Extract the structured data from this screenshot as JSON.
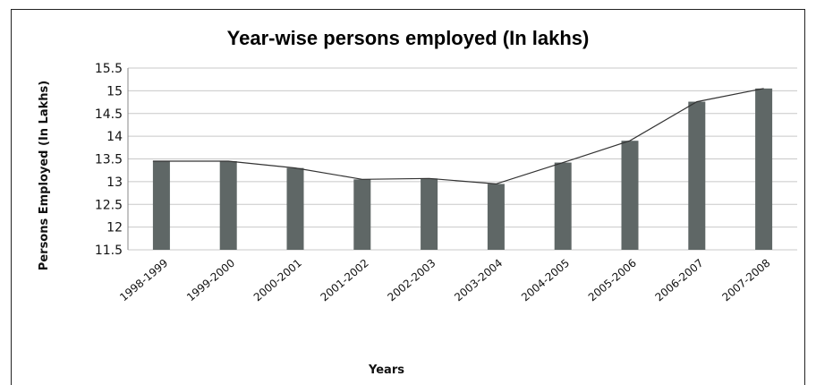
{
  "colors": {
    "bar": "#5f6766",
    "line": "#333333",
    "grid": "#c8c8c8",
    "axis": "#888888"
  },
  "chart_data": {
    "type": "bar",
    "title": "Year-wise persons employed (In lakhs)",
    "xlabel": "Years",
    "ylabel": "Persons Employed (In Lakhs)",
    "ylim": [
      11.5,
      15.5
    ],
    "y_ticks": [
      "11.5",
      "12",
      "12.5",
      "13",
      "13.5",
      "14",
      "14.5",
      "15",
      "15.5"
    ],
    "grid": true,
    "categories": [
      "1998-1999",
      "1999-2000",
      "2000-2001",
      "2001-2002",
      "2002-2003",
      "2003-2004",
      "2004-2005",
      "2005-2006",
      "2006-2007",
      "2007-2008"
    ],
    "values": [
      13.45,
      13.45,
      13.3,
      13.05,
      13.07,
      12.95,
      13.42,
      13.9,
      14.76,
      15.05
    ],
    "overlay": "line"
  }
}
